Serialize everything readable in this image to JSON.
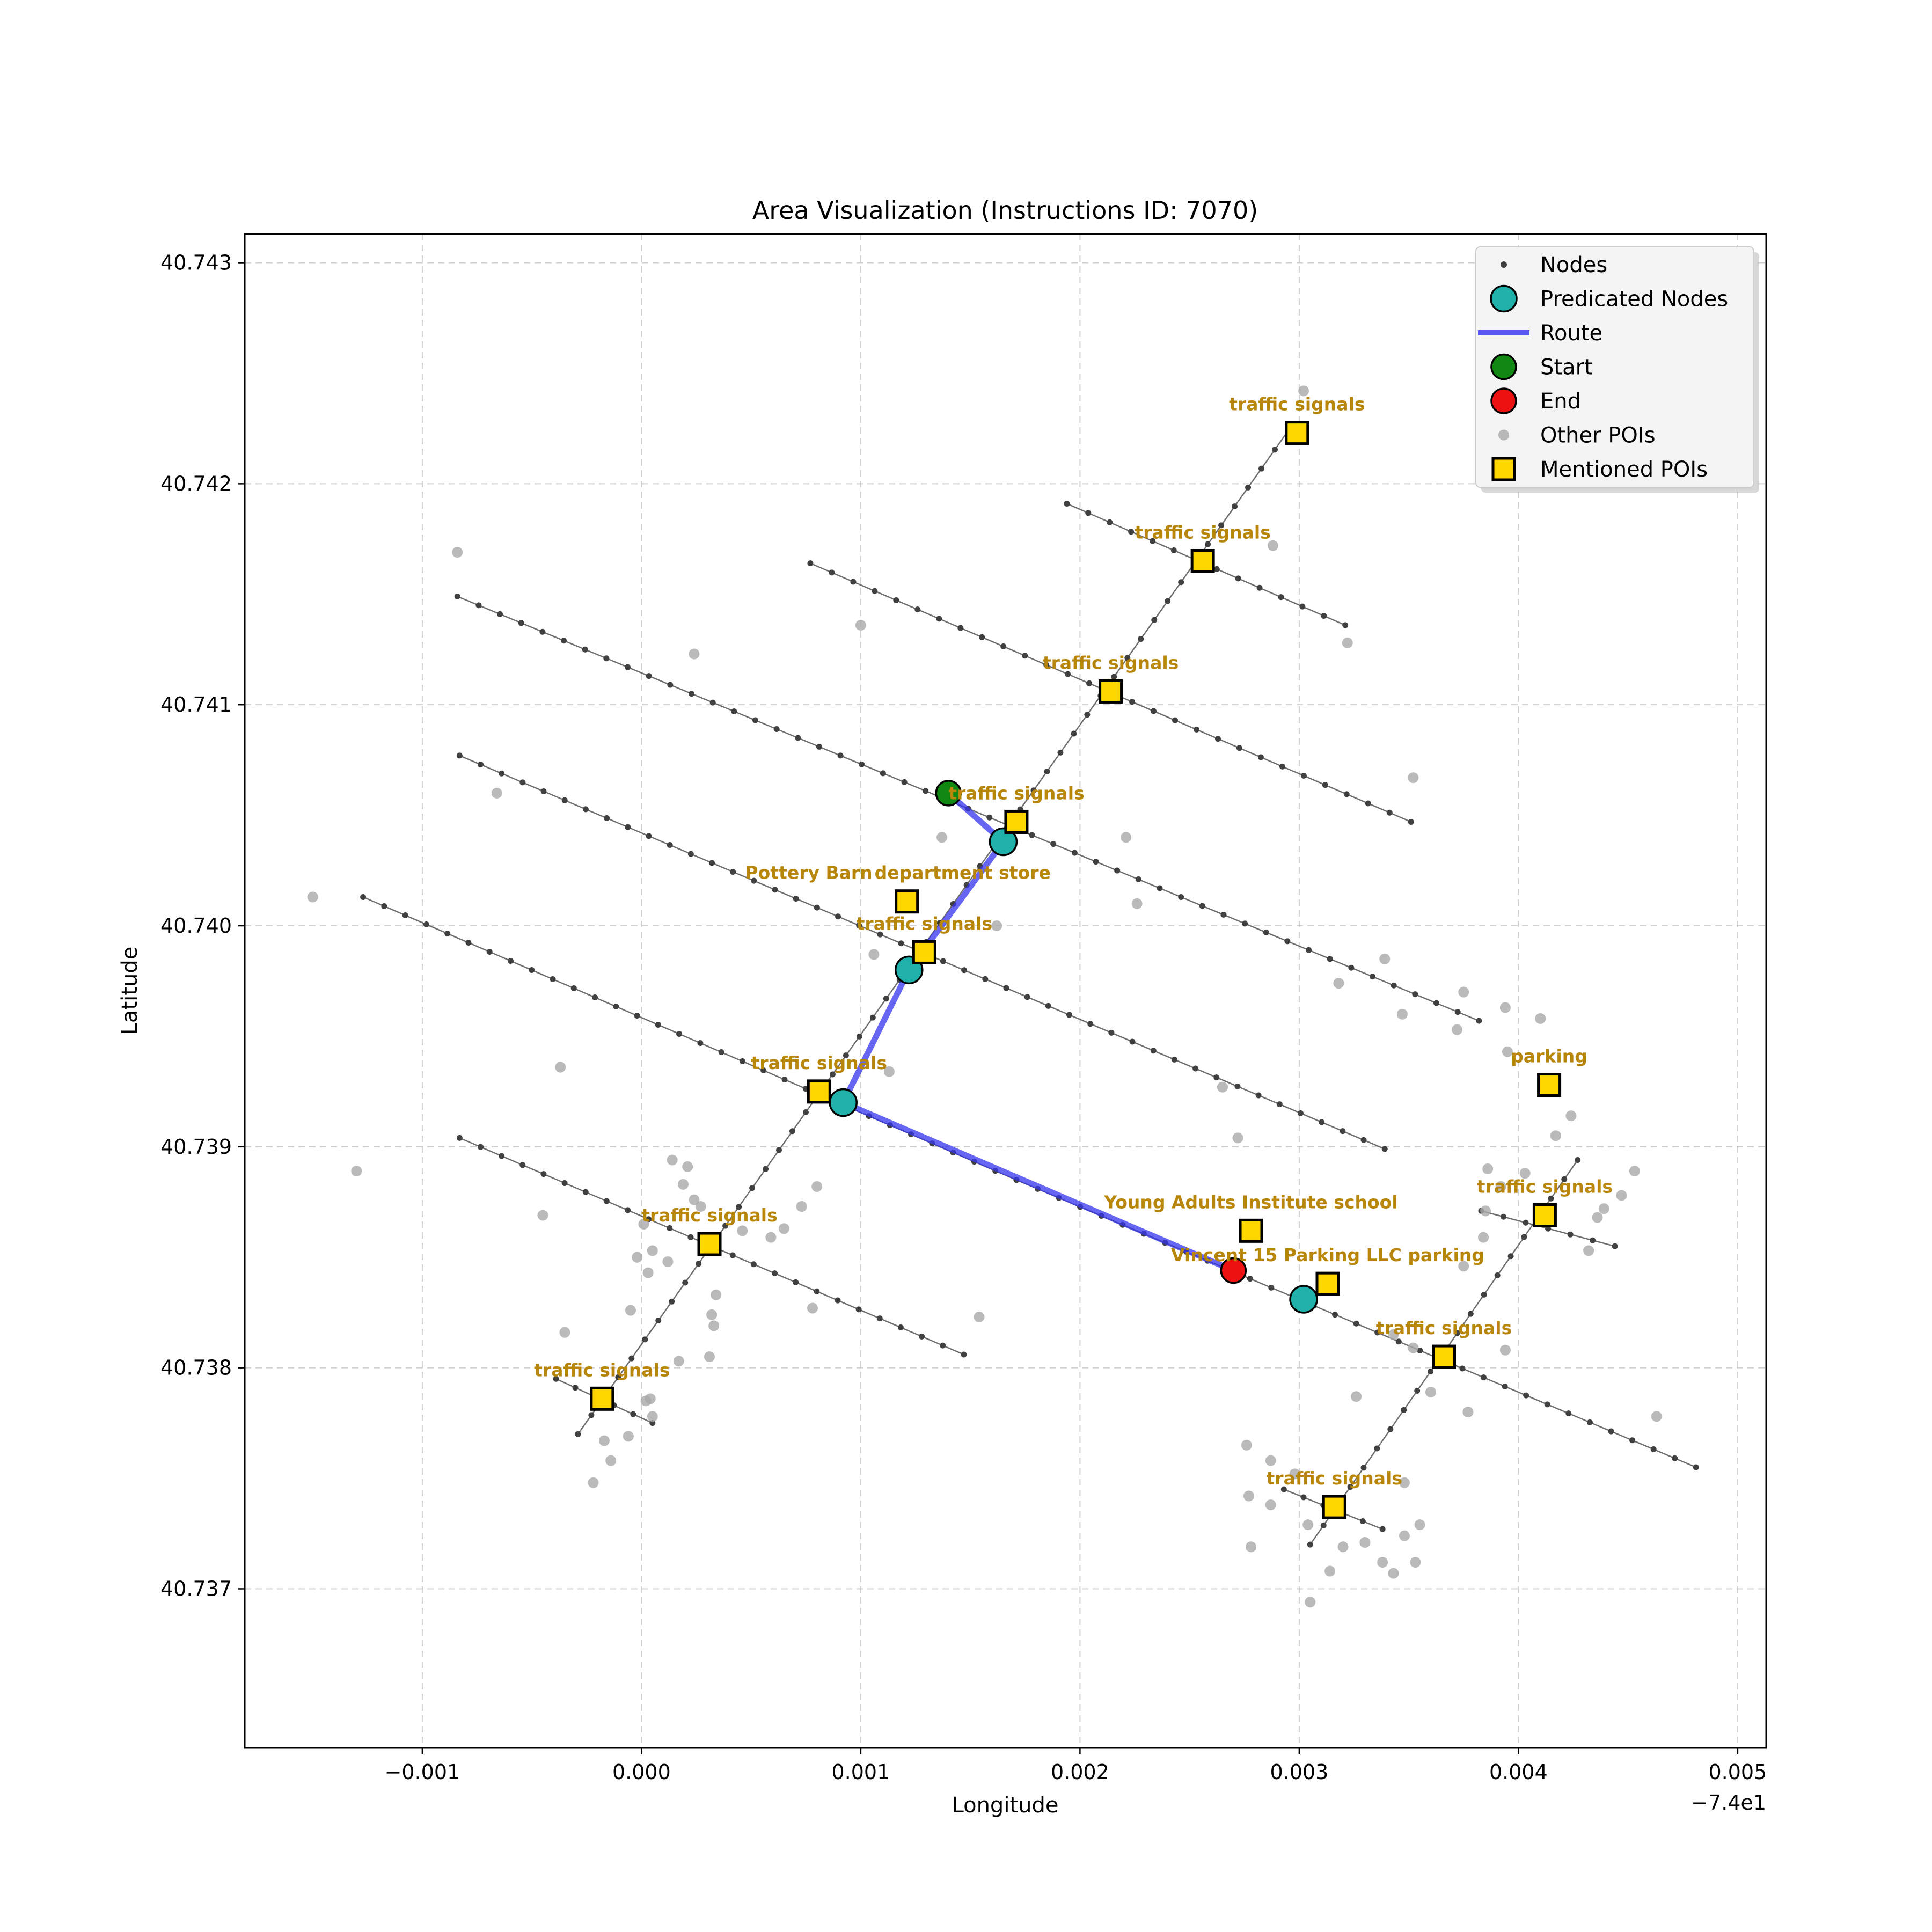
{
  "chart_data": {
    "type": "scatter",
    "title": "Area Visualization (Instructions ID: 7070)",
    "xlabel": "Longitude",
    "ylabel": "Latitude",
    "x_offset_label": "−7.4e1",
    "xlim": [
      -0.00181,
      0.00513
    ],
    "ylim": [
      40.73628,
      40.74313
    ],
    "x_ticks": [
      -0.001,
      0.0,
      0.001,
      0.002,
      0.003,
      0.004,
      0.005
    ],
    "x_tick_labels": [
      "−0.001",
      "0.000",
      "0.001",
      "0.002",
      "0.003",
      "0.004",
      "0.005"
    ],
    "y_ticks": [
      40.737,
      40.738,
      40.739,
      40.74,
      40.741,
      40.742,
      40.743
    ],
    "y_tick_labels": [
      "40.737",
      "40.738",
      "40.739",
      "40.740",
      "40.741",
      "40.742",
      "40.743"
    ],
    "grid": true,
    "legend_position": "top-right",
    "legend": [
      {
        "key": "nodes",
        "label": "Nodes"
      },
      {
        "key": "predicated",
        "label": "Predicated Nodes"
      },
      {
        "key": "route",
        "label": "Route"
      },
      {
        "key": "start",
        "label": "Start"
      },
      {
        "key": "end",
        "label": "End"
      },
      {
        "key": "other",
        "label": "Other POIs"
      },
      {
        "key": "mentioned",
        "label": "Mentioned POIs"
      }
    ],
    "colors": {
      "nodes": "#404040",
      "edges": "#555555",
      "predicated": "#20b2aa",
      "route": "#3333ee",
      "start": "#118811",
      "end": "#ee1111",
      "other": "#a9a9a9",
      "mentioned": "#ffd700",
      "poi_label": "#b8860b"
    },
    "streets": [
      {
        "from": [
          -0.00084,
          40.74149
        ],
        "to": [
          0.00382,
          40.73957
        ]
      },
      {
        "from": [
          -0.00083,
          40.74077
        ],
        "to": [
          0.00339,
          40.73899
        ]
      },
      {
        "from": [
          -0.00127,
          40.74013
        ],
        "to": [
          0.00171,
          40.73885
        ]
      },
      {
        "from": [
          0.00171,
          40.73885
        ],
        "to": [
          0.00481,
          40.73755
        ]
      },
      {
        "from": [
          -0.00083,
          40.73904
        ],
        "to": [
          0.00147,
          40.73806
        ]
      },
      {
        "from": [
          0.00077,
          40.74164
        ],
        "to": [
          0.00351,
          40.74047
        ]
      },
      {
        "from": [
          0.00194,
          40.74191
        ],
        "to": [
          0.00321,
          40.74136
        ]
      },
      {
        "from": [
          -0.00039,
          40.73795
        ],
        "to": [
          5e-05,
          40.73775
        ]
      },
      {
        "from": [
          0.00293,
          40.73745
        ],
        "to": [
          0.00338,
          40.73727
        ]
      },
      {
        "from": [
          0.00383,
          40.73871
        ],
        "to": [
          0.00444,
          40.73855
        ]
      },
      {
        "from": [
          -0.00029,
          40.7377
        ],
        "to": [
          0.00295,
          40.74224
        ]
      },
      {
        "from": [
          0.00305,
          40.7372
        ],
        "to": [
          0.00427,
          40.73894
        ]
      }
    ],
    "route": [
      [
        0.0014,
        40.7406
      ],
      [
        0.00165,
        40.74038
      ],
      [
        0.00122,
        40.7398
      ],
      [
        0.00092,
        40.7392
      ],
      [
        0.0027,
        40.73844
      ]
    ],
    "predicated_nodes": [
      [
        0.00165,
        40.74038
      ],
      [
        0.00122,
        40.7398
      ],
      [
        0.00092,
        40.7392
      ],
      [
        0.00302,
        40.73831
      ]
    ],
    "start": [
      0.0014,
      40.7406
    ],
    "end": [
      0.0027,
      40.73844
    ],
    "other_pois": [
      [
        -0.00084,
        40.74169
      ],
      [
        -0.0015,
        40.74013
      ],
      [
        -0.00066,
        40.7406
      ],
      [
        -0.0013,
        40.73889
      ],
      [
        -0.00037,
        40.73936
      ],
      [
        -0.00045,
        40.73869
      ],
      [
        0.00024,
        40.74123
      ],
      [
        0.001,
        40.74136
      ],
      [
        0.00137,
        40.7404
      ],
      [
        0.00162,
        40.74
      ],
      [
        0.00106,
        40.73987
      ],
      [
        0.00113,
        40.73934
      ],
      [
        0.0008,
        40.73882
      ],
      [
        0.00226,
        40.7401
      ],
      [
        0.00288,
        40.74172
      ],
      [
        0.00302,
        40.74242
      ],
      [
        0.00322,
        40.74128
      ],
      [
        0.00352,
        40.74067
      ],
      [
        0.00318,
        40.73974
      ],
      [
        0.00339,
        40.73985
      ],
      [
        0.00347,
        40.7396
      ],
      [
        0.00375,
        40.7397
      ],
      [
        0.00372,
        40.73953
      ],
      [
        0.00394,
        40.73963
      ],
      [
        0.0041,
        40.73958
      ],
      [
        0.00395,
        40.73943
      ],
      [
        0.00265,
        40.73927
      ],
      [
        0.00272,
        40.73904
      ],
      [
        0.00221,
        40.7404
      ],
      [
        0.00424,
        40.73914
      ],
      [
        0.00417,
        40.73905
      ],
      [
        0.00386,
        40.7389
      ],
      [
        0.00392,
        40.73882
      ],
      [
        0.00403,
        40.73888
      ],
      [
        0.00385,
        40.73871
      ],
      [
        0.00384,
        40.73859
      ],
      [
        0.00375,
        40.73846
      ],
      [
        0.00432,
        40.73853
      ],
      [
        0.00436,
        40.73868
      ],
      [
        0.00439,
        40.73872
      ],
      [
        0.00447,
        40.73878
      ],
      [
        0.00453,
        40.73889
      ],
      [
        0.00394,
        40.73808
      ],
      [
        0.00463,
        40.73778
      ],
      [
        0.00352,
        40.73809
      ],
      [
        0.00343,
        40.73815
      ],
      [
        0.0036,
        40.73789
      ],
      [
        0.00377,
        40.7378
      ],
      [
        0.00326,
        40.73787
      ],
      [
        0.00276,
        40.73765
      ],
      [
        0.00287,
        40.73758
      ],
      [
        0.00298,
        40.73752
      ],
      [
        0.00277,
        40.73742
      ],
      [
        0.00287,
        40.73738
      ],
      [
        0.00278,
        40.73719
      ],
      [
        0.00304,
        40.73729
      ],
      [
        0.0033,
        40.73721
      ],
      [
        0.00338,
        40.73712
      ],
      [
        0.00348,
        40.73724
      ],
      [
        0.00355,
        40.73729
      ],
      [
        0.0032,
        40.73719
      ],
      [
        0.00314,
        40.73708
      ],
      [
        0.00305,
        40.73694
      ],
      [
        0.00343,
        40.73707
      ],
      [
        0.00348,
        40.73748
      ],
      [
        0.00353,
        40.73712
      ],
      [
        0.00031,
        40.73805
      ],
      [
        0.00046,
        40.73862
      ],
      [
        0.00059,
        40.73859
      ],
      [
        0.00065,
        40.73863
      ],
      [
        0.00073,
        40.73873
      ],
      [
        0.00014,
        40.73894
      ],
      [
        0.00021,
        40.73891
      ],
      [
        0.00019,
        40.73883
      ],
      [
        0.00024,
        40.73876
      ],
      [
        0.00027,
        40.73873
      ],
      [
        0.00012,
        40.73848
      ],
      [
        3e-05,
        40.73843
      ],
      [
        5e-05,
        40.73853
      ],
      [
        1e-05,
        40.73865
      ],
      [
        -2e-05,
        40.7385
      ],
      [
        0.00034,
        40.73833
      ],
      [
        0.00033,
        40.73819
      ],
      [
        0.00032,
        40.73824
      ],
      [
        -5e-05,
        40.73826
      ],
      [
        0.00017,
        40.73803
      ],
      [
        0.00078,
        40.73827
      ],
      [
        0.00154,
        40.73823
      ],
      [
        -0.00035,
        40.73816
      ],
      [
        -0.00017,
        40.73767
      ],
      [
        -0.00014,
        40.73758
      ],
      [
        -0.00022,
        40.73748
      ],
      [
        -6e-05,
        40.73769
      ],
      [
        4e-05,
        40.73786
      ],
      [
        5e-05,
        40.73778
      ],
      [
        2e-05,
        40.73785
      ]
    ],
    "mentioned_pois": [
      {
        "label": "traffic signals",
        "lon": 0.00299,
        "lat": 40.74223
      },
      {
        "label": "traffic signals",
        "lon": 0.00256,
        "lat": 40.74165
      },
      {
        "label": "traffic signals",
        "lon": 0.00214,
        "lat": 40.74106
      },
      {
        "label": "traffic signals",
        "lon": 0.00171,
        "lat": 40.74047
      },
      {
        "label": "Pottery Barn",
        "lon": 0.00121,
        "lat": 40.74011
      },
      {
        "label": "department store",
        "lon": 0.00121,
        "lat": 40.74011,
        "label_only": true
      },
      {
        "label": "traffic signals",
        "lon": 0.00129,
        "lat": 40.73988
      },
      {
        "label": "traffic signals",
        "lon": 0.00081,
        "lat": 40.73925
      },
      {
        "label": "parking",
        "lon": 0.00414,
        "lat": 40.73928
      },
      {
        "label": "traffic signals",
        "lon": 0.00412,
        "lat": 40.73869
      },
      {
        "label": "Young Adults Institute school",
        "lon": 0.00278,
        "lat": 40.73862
      },
      {
        "label": "Vincent 15 Parking LLC parking",
        "lon": 0.00313,
        "lat": 40.73838
      },
      {
        "label": "traffic signals",
        "lon": 0.00031,
        "lat": 40.73856
      },
      {
        "label": "traffic signals",
        "lon": 0.00366,
        "lat": 40.73805
      },
      {
        "label": "traffic signals",
        "lon": -0.00018,
        "lat": 40.73786
      },
      {
        "label": "traffic signals",
        "lon": 0.00316,
        "lat": 40.73737
      }
    ]
  }
}
